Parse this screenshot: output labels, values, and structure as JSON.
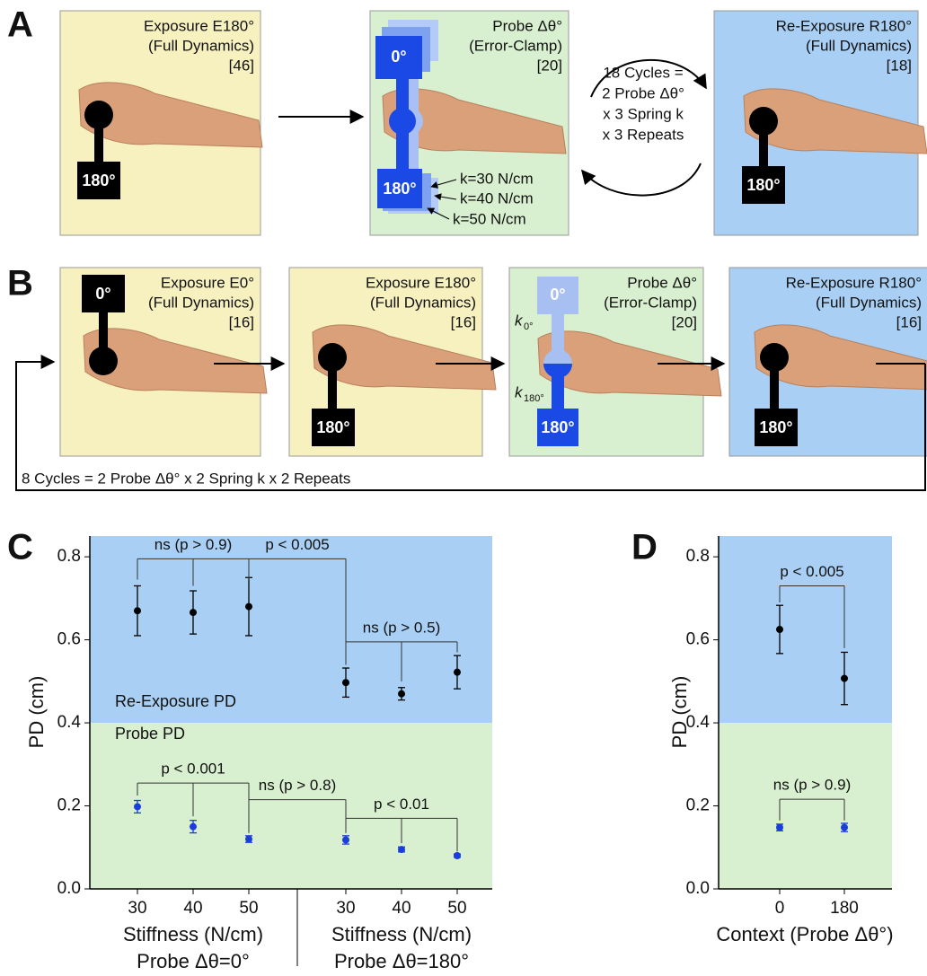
{
  "panels": {
    "A": {
      "label": "A",
      "boxes": [
        {
          "title": "Exposure E180°",
          "subtitle": "(Full Dynamics)",
          "count": "[46]",
          "target": "180°"
        },
        {
          "title": "Probe Δθ°",
          "subtitle": "(Error-Clamp)",
          "count": "[20]",
          "targets": [
            "0°",
            "180°"
          ],
          "springs": [
            "k=30 N/cm",
            "k=40 N/cm",
            "k=50 N/cm"
          ]
        },
        {
          "title": "Re-Exposure R180°",
          "subtitle": "(Full Dynamics)",
          "count": "[18]",
          "target": "180°"
        }
      ],
      "cycle_text": [
        "18 Cycles =",
        "2 Probe Δθ°",
        "x 3 Spring k",
        "x 3 Repeats"
      ]
    },
    "B": {
      "label": "B",
      "boxes": [
        {
          "title": "Exposure E0°",
          "subtitle": "(Full Dynamics)",
          "count": "[16]",
          "target": "0°"
        },
        {
          "title": "Exposure E180°",
          "subtitle": "(Full Dynamics)",
          "count": "[16]",
          "target": "180°"
        },
        {
          "title": "Probe Δθ°",
          "subtitle": "(Error-Clamp)",
          "count": "[20]",
          "targets": [
            "0°",
            "180°"
          ],
          "springs": [
            {
              "symbol": "k",
              "subscript": "0°"
            },
            {
              "symbol": "k",
              "subscript": "180°"
            }
          ]
        },
        {
          "title": "Re-Exposure R180°",
          "subtitle": "(Full Dynamics)",
          "count": "[16]",
          "target": "180°"
        }
      ],
      "cycle_text": "8 Cycles = 2 Probe Δθ° x 2 Spring k x 2 Repeats"
    }
  },
  "chart_data": [
    {
      "type": "errorbar",
      "panel": "C",
      "ylabel": "PD (cm)",
      "xlabels": [
        "Stiffness (N/cm)",
        "Stiffness (N/cm)"
      ],
      "group_labels": [
        "Probe Δθ=0°",
        "Probe Δθ=180°"
      ],
      "categories": [
        "30",
        "40",
        "50",
        "30",
        "40",
        "50"
      ],
      "ylim": [
        0,
        0.85
      ],
      "yticks": [
        {
          "value": 0,
          "label": "0.0"
        },
        0.2,
        0.4,
        0.6,
        0.8
      ],
      "series": [
        {
          "name": "Re-Exposure PD",
          "color": "#000000",
          "band": [
            0.4,
            0.85
          ],
          "band_color": "#a9d0f4",
          "values": [
            0.67,
            0.666,
            0.68,
            0.497,
            0.47,
            0.522
          ],
          "errors": [
            0.06,
            0.052,
            0.07,
            0.035,
            0.015,
            0.04
          ]
        },
        {
          "name": "Probe PD",
          "color": "#1a3de0",
          "band": [
            0,
            0.4
          ],
          "band_color": "#d8f0cf",
          "values": [
            0.198,
            0.15,
            0.12,
            0.118,
            0.095,
            0.08
          ],
          "errors": [
            0.015,
            0.015,
            0.008,
            0.01,
            0.006,
            0.004
          ]
        }
      ],
      "annotations": [
        "ns (p > 0.9)",
        "p < 0.005",
        "ns (p > 0.5)",
        "p < 0.001",
        "ns (p > 0.8)",
        "p < 0.01"
      ]
    },
    {
      "type": "errorbar",
      "panel": "D",
      "ylabel": "PD (cm)",
      "xlabels": [
        "Context (Probe Δθ°)"
      ],
      "categories": [
        "0",
        "180"
      ],
      "ylim": [
        0,
        0.85
      ],
      "yticks": [
        {
          "value": 0,
          "label": "0.0"
        },
        0.2,
        0.4,
        0.6,
        0.8
      ],
      "series": [
        {
          "color": "#000000",
          "band": [
            0.4,
            0.85
          ],
          "band_color": "#a9d0f4",
          "values": [
            0.625,
            0.507
          ],
          "errors": [
            0.058,
            0.063
          ]
        },
        {
          "color": "#1a3de0",
          "band": [
            0,
            0.4
          ],
          "band_color": "#d8f0cf",
          "values": [
            0.148,
            0.148
          ],
          "errors": [
            0.008,
            0.01
          ]
        }
      ],
      "annotations": [
        "p < 0.005",
        "ns (p > 0.9)"
      ]
    }
  ]
}
